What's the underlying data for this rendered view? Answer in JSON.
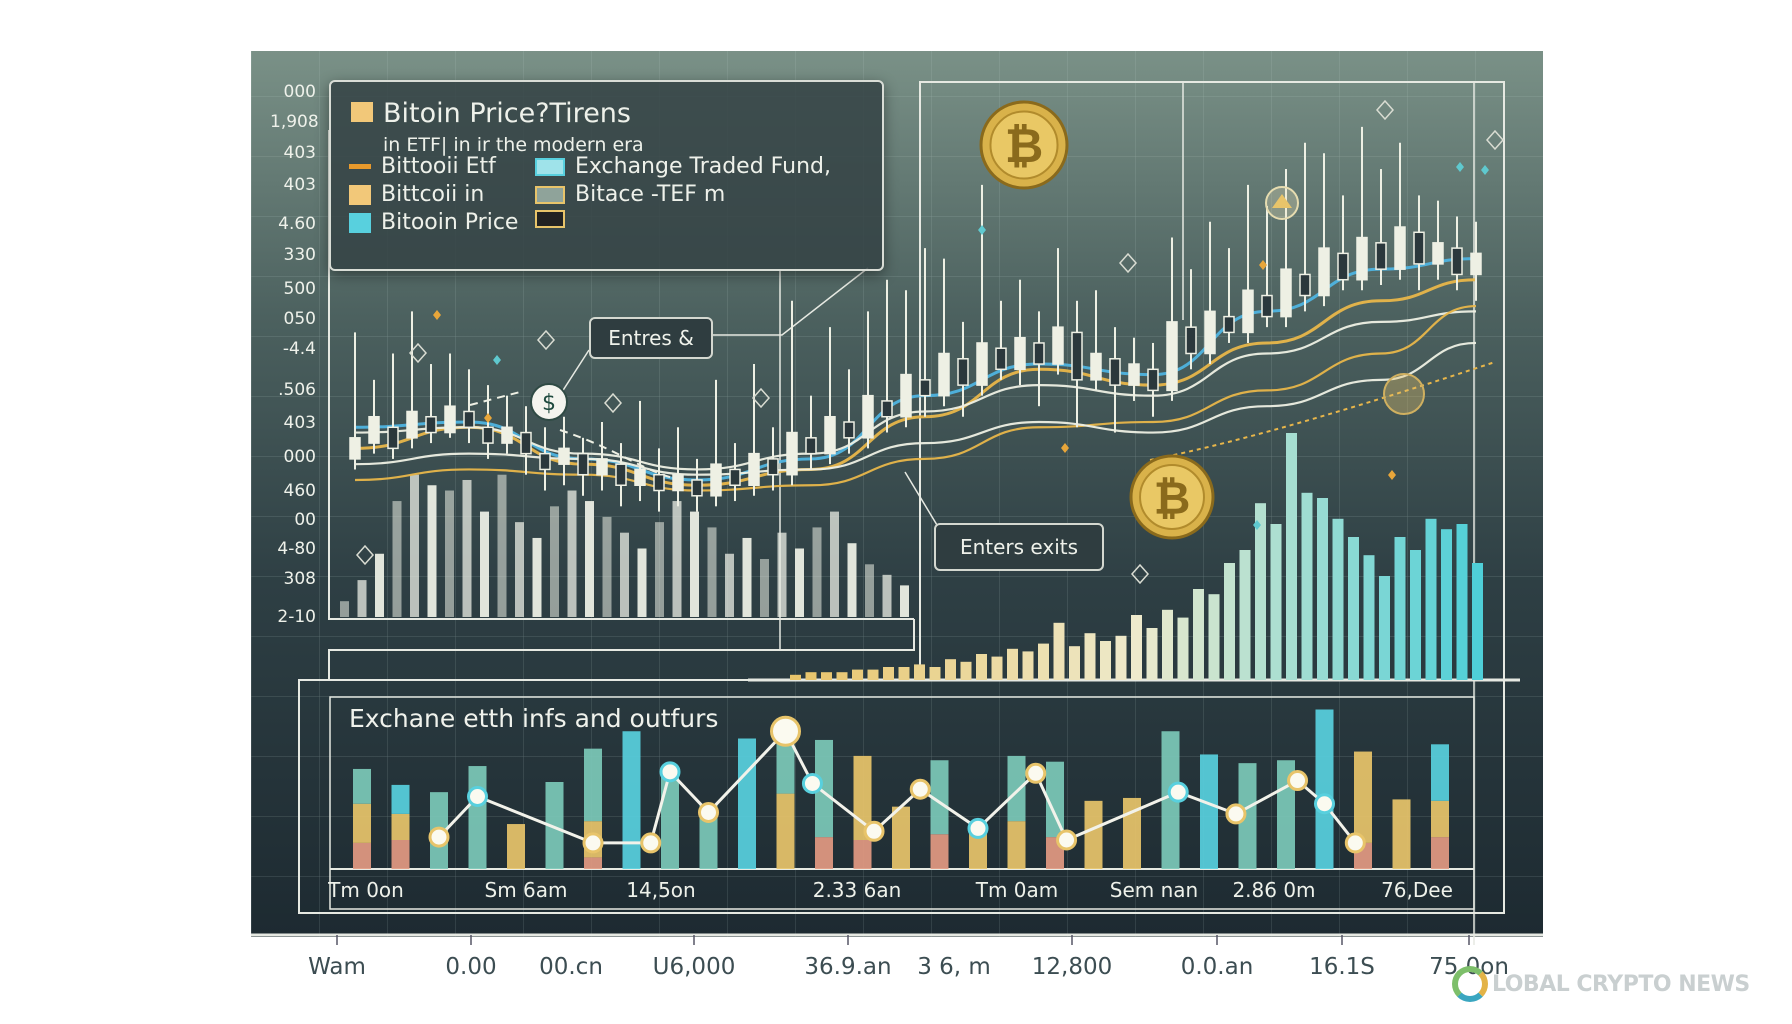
{
  "legend": {
    "title": "Bitoin Price?Tirens",
    "subtitle": "in ETF| in ir the modern era",
    "items": [
      {
        "label": "Bittooii Etf",
        "color": "#e89a2c",
        "kind": "line"
      },
      {
        "label": "Bittcoii in",
        "color": "#f2c879",
        "kind": "fill"
      },
      {
        "label": "Bitooin Price",
        "color": "#58d0de",
        "kind": "fill"
      },
      {
        "label": "Exchange Traded Fund,",
        "color": "#58d0de",
        "kind": "box"
      },
      {
        "label": "Bitace -TEF m",
        "color": "#e8c46a",
        "kind": "box"
      },
      {
        "label": "",
        "color": "#e8c46a",
        "kind": "box"
      }
    ]
  },
  "callouts": {
    "entries": "Entres &",
    "exits": "Enters exits"
  },
  "y_ticks": [
    "000",
    "1,908",
    "403",
    "403",
    "4.60",
    "330",
    "500",
    "050",
    "-4.4",
    ".506",
    "403",
    "000",
    "460",
    "00",
    "4-80",
    "308",
    "2-10"
  ],
  "bottom_panel": {
    "title": "Exchane etth infs and outfurs",
    "labels": [
      "Tm 0on",
      "Sm 6am",
      "14,5on",
      "2.33 6an",
      "Tm 0am",
      "Sem nan",
      "2.86 0m",
      "76,Dee"
    ]
  },
  "x_ticks": [
    "Wam",
    "0.00",
    "00.cn",
    "U6,000",
    "36.9.an",
    "3 6, m",
    "12,800",
    "0.0.an",
    "16.1S",
    "75.0on"
  ],
  "watermark": "LOBAL CRYPTO NEWS",
  "colors": {
    "gold": "#e8c46a",
    "cyan": "#58d0de",
    "teal": "#7cc9b8",
    "salmon": "#e39a82",
    "candle": "#eef0e4",
    "blue_line": "#4fb4e0"
  },
  "chart_data": [
    {
      "type": "candlestick",
      "ylim": [
        0,
        100
      ],
      "candles": [
        [
          30,
          34,
          54,
          28
        ],
        [
          33,
          38,
          45,
          31
        ],
        [
          36,
          32,
          50,
          30
        ],
        [
          34,
          39,
          58,
          32
        ],
        [
          38,
          35,
          48,
          33
        ],
        [
          35,
          40,
          50,
          34
        ],
        [
          39,
          36,
          47,
          33
        ],
        [
          36,
          33,
          44,
          30
        ],
        [
          33,
          36,
          42,
          31
        ],
        [
          35,
          31,
          40,
          27
        ],
        [
          31,
          28,
          36,
          24
        ],
        [
          29,
          32,
          38,
          25
        ],
        [
          31,
          27,
          34,
          23
        ],
        [
          27,
          30,
          37,
          24
        ],
        [
          29,
          25,
          33,
          21
        ],
        [
          25,
          28,
          41,
          22
        ],
        [
          27,
          24,
          32,
          20
        ],
        [
          24,
          27,
          36,
          21
        ],
        [
          26,
          23,
          30,
          20
        ],
        [
          23,
          29,
          45,
          21
        ],
        [
          28,
          25,
          33,
          22
        ],
        [
          25,
          31,
          48,
          23
        ],
        [
          30,
          27,
          36,
          24
        ],
        [
          27,
          35,
          60,
          25
        ],
        [
          34,
          31,
          42,
          28
        ],
        [
          31,
          38,
          55,
          29
        ],
        [
          37,
          34,
          47,
          31
        ],
        [
          34,
          42,
          58,
          32
        ],
        [
          41,
          38,
          64,
          35
        ],
        [
          38,
          46,
          62,
          36
        ],
        [
          45,
          42,
          70,
          38
        ],
        [
          42,
          50,
          68,
          40
        ],
        [
          49,
          44,
          56,
          38
        ],
        [
          44,
          52,
          82,
          42
        ],
        [
          51,
          47,
          60,
          45
        ],
        [
          47,
          53,
          64,
          44
        ],
        [
          52,
          48,
          58,
          40
        ],
        [
          48,
          55,
          70,
          46
        ],
        [
          54,
          45,
          60,
          36
        ],
        [
          45,
          50,
          62,
          43
        ],
        [
          49,
          44,
          55,
          35
        ],
        [
          44,
          48,
          53,
          41
        ],
        [
          47,
          43,
          52,
          38
        ],
        [
          43,
          56,
          72,
          41
        ],
        [
          55,
          50,
          66,
          47
        ],
        [
          50,
          58,
          75,
          48
        ],
        [
          57,
          54,
          70,
          52
        ],
        [
          54,
          62,
          82,
          52
        ],
        [
          61,
          57,
          78,
          55
        ],
        [
          57,
          66,
          85,
          55
        ],
        [
          65,
          61,
          90,
          58
        ],
        [
          61,
          70,
          88,
          59
        ],
        [
          69,
          64,
          80,
          62
        ],
        [
          64,
          72,
          93,
          62
        ],
        [
          71,
          66,
          85,
          63
        ],
        [
          66,
          74,
          90,
          64
        ],
        [
          73,
          67,
          80,
          62
        ],
        [
          67,
          71,
          79,
          64
        ],
        [
          70,
          65,
          76,
          62
        ],
        [
          65,
          69,
          75,
          60
        ]
      ],
      "lines": {
        "x": [
          0,
          6,
          12,
          18,
          24,
          30,
          36,
          42,
          48,
          54,
          59
        ],
        "series": [
          {
            "color": "#4fb4e0",
            "values": [
              36,
              37,
              30,
              26,
              30,
              42,
              48,
              46,
              58,
              66,
              68
            ]
          },
          {
            "color": "#e8b64a",
            "values": [
              32,
              36,
              29,
              25,
              28,
              38,
              47,
              44,
              52,
              60,
              64
            ]
          },
          {
            "color": "#eef0e4",
            "values": [
              35,
              36,
              31,
              28,
              31,
              39,
              44,
              42,
              50,
              56,
              58
            ]
          },
          {
            "color": "#e8b64a",
            "values": [
              26,
              28,
              27,
              24,
              25,
              30,
              36,
              37,
              43,
              50,
              59
            ]
          },
          {
            "color": "#eef0e4",
            "values": [
              29,
              31,
              30,
              27,
              28,
              33,
              37,
              35,
              40,
              45,
              52
            ]
          }
        ]
      },
      "volume": [
        3,
        7,
        12,
        22,
        27,
        25,
        24,
        26,
        20,
        27,
        18,
        15,
        21,
        24,
        22,
        19,
        16,
        13,
        18,
        22,
        20,
        17,
        12,
        15,
        11,
        16,
        13,
        17,
        20,
        14,
        10,
        8,
        6
      ]
    },
    {
      "type": "bar",
      "ylim": [
        0,
        100
      ],
      "values": [
        2,
        3,
        3,
        3,
        4,
        4,
        5,
        5,
        6,
        5,
        8,
        7,
        10,
        9,
        12,
        11,
        14,
        22,
        13,
        18,
        15,
        17,
        25,
        20,
        27,
        24,
        35,
        33,
        45,
        50,
        68,
        60,
        95,
        72,
        70,
        62,
        55,
        48,
        40,
        55,
        50,
        62,
        58,
        60,
        45
      ]
    },
    {
      "type": "bar+line",
      "ylim": [
        0,
        110
      ],
      "bars": [
        {
          "stack": [
            18,
            27,
            24
          ]
        },
        {
          "stack": [
            20,
            18,
            20
          ]
        },
        {
          "stack": [
            0,
            0,
            53
          ]
        },
        {
          "stack": [
            0,
            0,
            71
          ]
        },
        {
          "stack": [
            0,
            31,
            0
          ]
        },
        {
          "stack": [
            0,
            0,
            60
          ]
        },
        {
          "stack": [
            8,
            25,
            50
          ]
        },
        {
          "stack": [
            0,
            0,
            95
          ]
        },
        {
          "stack": [
            0,
            0,
            67
          ]
        },
        {
          "stack": [
            0,
            0,
            44
          ]
        },
        {
          "stack": [
            0,
            0,
            90
          ]
        },
        {
          "stack": [
            0,
            52,
            48
          ]
        },
        {
          "stack": [
            22,
            0,
            67
          ]
        },
        {
          "stack": [
            20,
            58,
            0
          ]
        },
        {
          "stack": [
            0,
            43,
            0
          ]
        },
        {
          "stack": [
            24,
            0,
            51
          ]
        },
        {
          "stack": [
            0,
            33,
            0
          ]
        },
        {
          "stack": [
            0,
            33,
            45
          ]
        },
        {
          "stack": [
            22,
            0,
            52
          ]
        },
        {
          "stack": [
            0,
            47,
            0
          ]
        },
        {
          "stack": [
            0,
            49,
            0
          ]
        },
        {
          "stack": [
            0,
            0,
            95
          ]
        },
        {
          "stack": [
            0,
            0,
            79
          ]
        },
        {
          "stack": [
            0,
            0,
            73
          ]
        },
        {
          "stack": [
            0,
            0,
            75
          ]
        },
        {
          "stack": [
            0,
            0,
            110
          ]
        },
        {
          "stack": [
            18,
            63,
            0
          ]
        },
        {
          "stack": [
            0,
            48,
            0
          ]
        },
        {
          "stack": [
            22,
            25,
            39
          ]
        }
      ],
      "line": {
        "x": [
          2,
          3,
          6,
          7.5,
          8,
          9,
          11,
          11.7,
          13.3,
          14.5,
          16,
          17.5,
          18.3,
          21.2,
          22.7,
          24.3,
          25,
          25.8
        ],
        "values": [
          22,
          50,
          18,
          18,
          67,
          39,
          95,
          59,
          26,
          55,
          28,
          66,
          20,
          53,
          38,
          61,
          45,
          18
        ]
      }
    }
  ]
}
